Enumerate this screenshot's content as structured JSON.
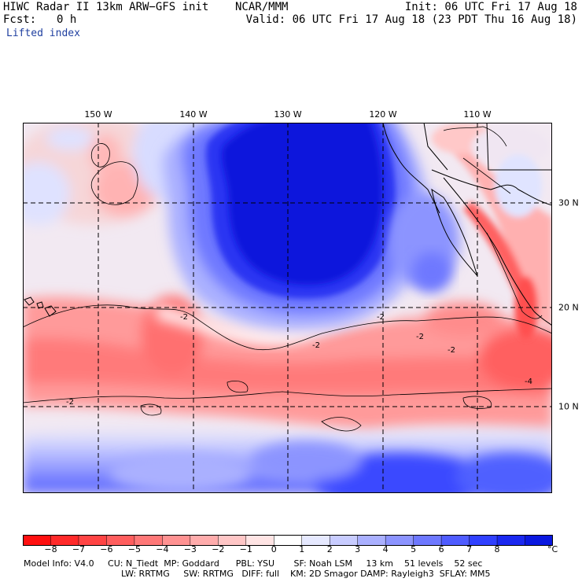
{
  "header": {
    "title": "HIWC Radar II 13km ARW−GFS init    NCAR/MMM",
    "init": "Init: 06 UTC Fri 17 Aug 18",
    "fcst_label": "Fcst:",
    "fcst_value": "0 h",
    "valid": "Valid: 06 UTC Fri 17 Aug 18 (23 PDT Thu 16 Aug 18)",
    "field": "Lifted index"
  },
  "map": {
    "lon_labels": [
      "150 W",
      "140 W",
      "130 W",
      "120 W",
      "110 W"
    ],
    "lat_labels": [
      "30 N",
      "20 N",
      "10 N"
    ],
    "contour_labels": [
      "-2",
      "-2",
      "-2",
      "-2",
      "-2",
      "-2",
      "-4"
    ],
    "background_color": "#ffffff",
    "grid_color": "#000000"
  },
  "colorbar": {
    "ticks": [
      "−8",
      "−7",
      "−6",
      "−5",
      "−4",
      "−3",
      "−2",
      "−1",
      "0",
      "1",
      "2",
      "3",
      "4",
      "5",
      "6",
      "7",
      "8"
    ],
    "unit": "°C",
    "colors": [
      "#ff1010",
      "#ff2a2a",
      "#ff4444",
      "#ff5e5e",
      "#ff7878",
      "#ff9292",
      "#ffacac",
      "#ffc6c6",
      "#ffe4e4",
      "#ffffff",
      "#e6e9ff",
      "#c8ccff",
      "#aab0ff",
      "#8c94ff",
      "#6e78ff",
      "#4f5cff",
      "#3040ff",
      "#1a28f0",
      "#0a18e0"
    ]
  },
  "footer": {
    "line1": "Model Info: V4.0     CU: N_Tiedt  MP: Goddard      PBL: YSU       SF: Noah LSM     13 km    51 levels    52 sec",
    "line2": "LW: RRTMG     SW: RRTMG   DIFF: full    KM: 2D Smagor DAMP: Rayleigh3  SFLAY: MM5"
  }
}
